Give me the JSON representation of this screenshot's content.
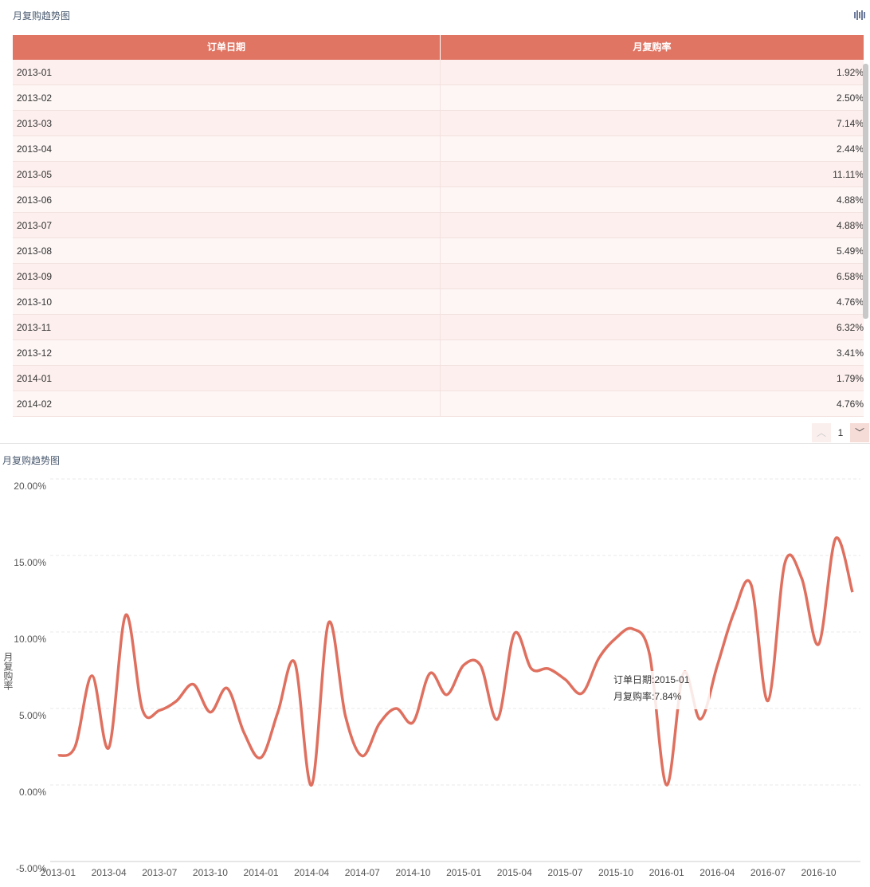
{
  "table": {
    "title": "月复购趋势图",
    "columns": [
      "订单日期",
      "月复购率"
    ],
    "rows": [
      [
        "2013-01",
        "1.92%"
      ],
      [
        "2013-02",
        "2.50%"
      ],
      [
        "2013-03",
        "7.14%"
      ],
      [
        "2013-04",
        "2.44%"
      ],
      [
        "2013-05",
        "11.11%"
      ],
      [
        "2013-06",
        "4.88%"
      ],
      [
        "2013-07",
        "4.88%"
      ],
      [
        "2013-08",
        "5.49%"
      ],
      [
        "2013-09",
        "6.58%"
      ],
      [
        "2013-10",
        "4.76%"
      ],
      [
        "2013-11",
        "6.32%"
      ],
      [
        "2013-12",
        "3.41%"
      ],
      [
        "2014-01",
        "1.79%"
      ],
      [
        "2014-02",
        "4.76%"
      ]
    ],
    "page": "1"
  },
  "chart_data": {
    "type": "line",
    "title": "月复购趋势图",
    "y_label": "月复购率",
    "color": "#df705f",
    "categories": [
      "2013-01",
      null,
      null,
      "2013-04",
      null,
      null,
      "2013-07",
      null,
      null,
      "2013-10",
      null,
      null,
      "2014-01",
      null,
      null,
      "2014-04",
      null,
      null,
      "2014-07",
      null,
      null,
      "2014-10",
      null,
      null,
      "2015-01",
      null,
      null,
      "2015-04",
      null,
      null,
      "2015-07",
      null,
      null,
      "2015-10",
      null,
      null,
      "2016-01",
      null,
      null,
      "2016-04",
      null,
      null,
      "2016-07",
      null,
      null,
      "2016-10",
      null,
      null
    ],
    "values": [
      1.92,
      2.5,
      7.14,
      2.44,
      11.11,
      4.88,
      4.88,
      5.49,
      6.58,
      4.76,
      6.32,
      3.41,
      1.79,
      4.76,
      8.0,
      0.0,
      10.6,
      4.5,
      1.9,
      4.0,
      5.0,
      4.1,
      7.3,
      5.9,
      7.84,
      7.8,
      4.3,
      9.9,
      7.6,
      7.6,
      6.9,
      6.0,
      8.3,
      9.6,
      10.2,
      8.5,
      0.0,
      7.3,
      4.3,
      7.8,
      11.3,
      13.1,
      5.5,
      14.5,
      13.5,
      9.2,
      16.1,
      12.6
    ],
    "ylim": [
      -5,
      20
    ],
    "yticks": [
      {
        "value": -5,
        "label": "-5.00%"
      },
      {
        "value": 0,
        "label": "0.00%"
      },
      {
        "value": 5,
        "label": "5.00%"
      },
      {
        "value": 10,
        "label": "10.00%"
      },
      {
        "value": 15,
        "label": "15.00%"
      },
      {
        "value": 20,
        "label": "20.00%"
      }
    ],
    "grid": true,
    "tooltip": [
      "订单日期:2015-01",
      "月复购率:7.84%"
    ]
  }
}
